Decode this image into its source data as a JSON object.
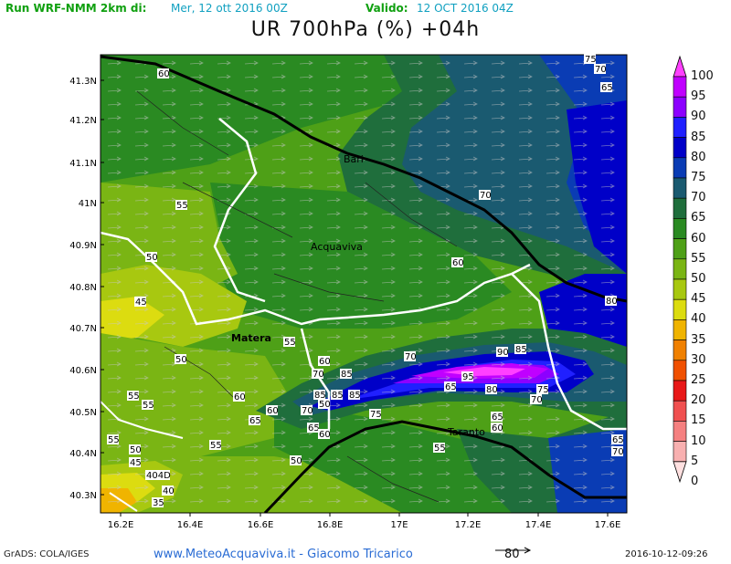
{
  "header": {
    "run_label": "Run WRF-NMM 2km di:",
    "run_date": "Mer, 12 ott 2016 00Z",
    "valid_label": "Valido:",
    "valid_date": "12 OCT 2016 04Z",
    "title": "UR 700hPa (%) +04h"
  },
  "map": {
    "lat_labels": [
      "41.3N",
      "41.2N",
      "41.1N",
      "41N",
      "40.9N",
      "40.8N",
      "40.7N",
      "40.6N",
      "40.5N",
      "40.4N",
      "40.3N"
    ],
    "lon_labels": [
      "16.2E",
      "16.4E",
      "16.6E",
      "16.8E",
      "17E",
      "17.2E",
      "17.4E",
      "17.6E"
    ],
    "cities": [
      "Bari",
      "Acquaviva",
      "Matera",
      "Taranto"
    ],
    "contour_labels": [
      "75",
      "70",
      "65",
      "60",
      "55",
      "50",
      "45",
      "40",
      "35",
      "80",
      "85",
      "90",
      "95",
      "404D"
    ]
  },
  "colorbar": {
    "levels": [
      "100",
      "95",
      "90",
      "85",
      "80",
      "75",
      "70",
      "65",
      "60",
      "55",
      "50",
      "45",
      "40",
      "35",
      "30",
      "25",
      "20",
      "15",
      "10",
      "5",
      "0"
    ],
    "colors": [
      "#ff40ff",
      "#c000ff",
      "#8c00ff",
      "#2020ff",
      "#0000c8",
      "#0a3cb4",
      "#1a5a70",
      "#1f6e3c",
      "#2a8a22",
      "#4ea017",
      "#7ab514",
      "#a8c810",
      "#dcdc10",
      "#f0b400",
      "#f08000",
      "#f05000",
      "#e81818",
      "#f05050",
      "#f58080",
      "#f8b0b0",
      "#ffe0e0"
    ]
  },
  "footer": {
    "grads": "GrADS: COLA/IGES",
    "website": "www.MeteoAcquaviva.it  -  Giacomo Tricarico",
    "wind_ref": "80",
    "timestamp": "2016-10-12-09:26"
  }
}
